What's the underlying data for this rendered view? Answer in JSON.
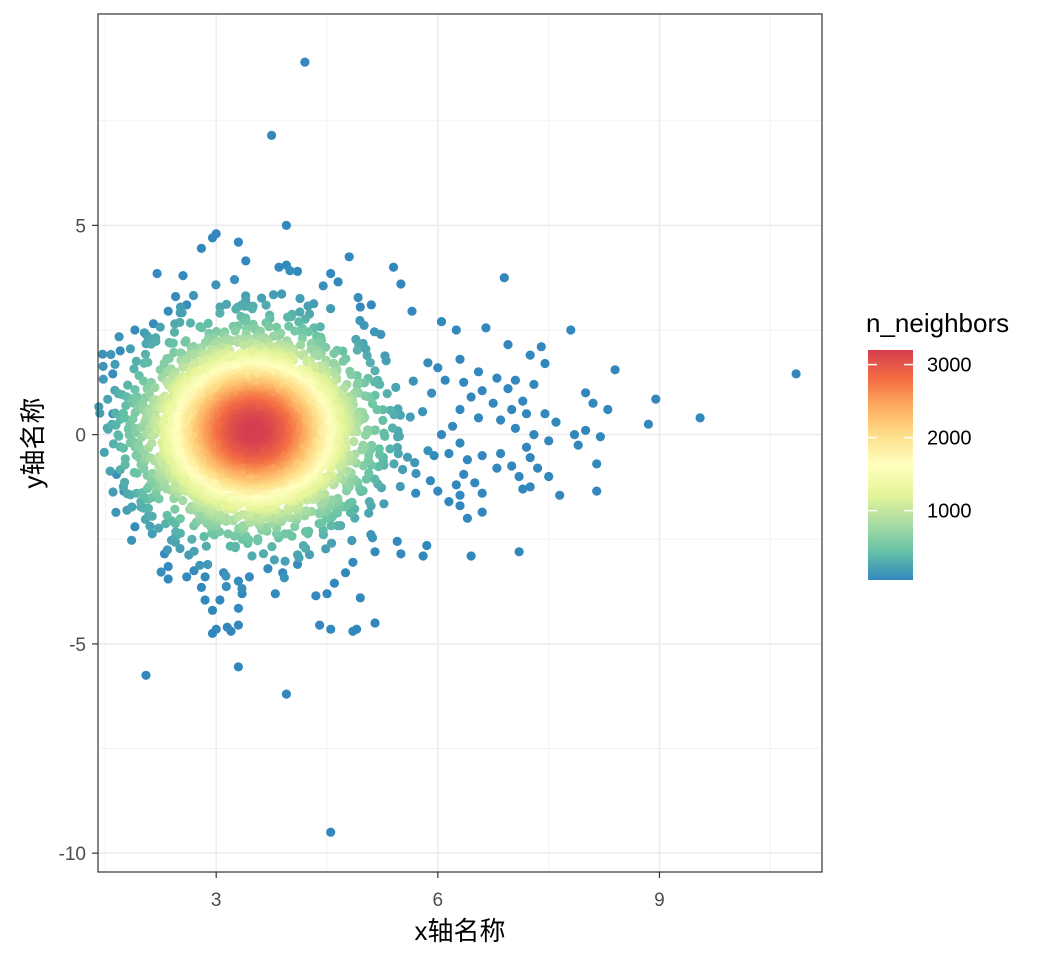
{
  "chart_data": {
    "type": "scatter",
    "xlabel": "x轴名称",
    "ylabel": "y轴名称",
    "xlim": [
      1.4,
      11.2
    ],
    "ylim": [
      -10.45,
      10.05
    ],
    "x_ticks": [
      3,
      6,
      9
    ],
    "x_tick_labels": [
      "3",
      "6",
      "9"
    ],
    "y_ticks": [
      -10,
      -5,
      0,
      5
    ],
    "y_tick_labels": [
      "-10",
      "-5",
      "0",
      "5"
    ],
    "grid": true,
    "color_variable": "n_neighbors",
    "colorbar": {
      "title": "n_neighbors",
      "range": [
        50,
        3200
      ],
      "ticks": [
        1000,
        2000,
        3000
      ],
      "tick_labels": [
        "1000",
        "2000",
        "3000"
      ],
      "palette": [
        "#3288bd",
        "#66c2a5",
        "#abdda4",
        "#e6f598",
        "#ffffbf",
        "#fee08b",
        "#fdae61",
        "#f46d43",
        "#d53e4f"
      ],
      "position": "right"
    },
    "core_cloud": {
      "description": "dense bivariate-normal cluster",
      "center": [
        3.5,
        0.1
      ],
      "sd": [
        0.75,
        1.15
      ],
      "n_points": 3600,
      "max_neighbors": 3200
    },
    "sparse_points": [
      {
        "x": 4.2,
        "y": 8.9
      },
      {
        "x": 3.75,
        "y": 7.15
      },
      {
        "x": 3.95,
        "y": 5.0
      },
      {
        "x": 3.0,
        "y": 4.8
      },
      {
        "x": 2.95,
        "y": 4.7
      },
      {
        "x": 3.3,
        "y": 4.6
      },
      {
        "x": 2.8,
        "y": 4.45
      },
      {
        "x": 3.4,
        "y": 4.15
      },
      {
        "x": 3.85,
        "y": 4.0
      },
      {
        "x": 3.95,
        "y": 4.05
      },
      {
        "x": 4.1,
        "y": 3.9
      },
      {
        "x": 4.55,
        "y": 3.85
      },
      {
        "x": 4.8,
        "y": 4.25
      },
      {
        "x": 5.4,
        "y": 4.0
      },
      {
        "x": 5.5,
        "y": 3.6
      },
      {
        "x": 4.65,
        "y": 3.65
      },
      {
        "x": 2.2,
        "y": 3.85
      },
      {
        "x": 2.55,
        "y": 3.8
      },
      {
        "x": 6.9,
        "y": 3.75
      },
      {
        "x": 2.45,
        "y": 3.3
      },
      {
        "x": 4.95,
        "y": 3.05
      },
      {
        "x": 5.1,
        "y": 3.1
      },
      {
        "x": 5.65,
        "y": 2.95
      },
      {
        "x": 6.05,
        "y": 2.7
      },
      {
        "x": 6.25,
        "y": 2.5
      },
      {
        "x": 6.65,
        "y": 2.55
      },
      {
        "x": 7.8,
        "y": 2.5
      },
      {
        "x": 6.95,
        "y": 2.15
      },
      {
        "x": 7.25,
        "y": 1.9
      },
      {
        "x": 7.4,
        "y": 2.1
      },
      {
        "x": 7.45,
        "y": 1.7
      },
      {
        "x": 8.4,
        "y": 1.55
      },
      {
        "x": 10.85,
        "y": 1.45
      },
      {
        "x": 6.3,
        "y": 1.8
      },
      {
        "x": 6.0,
        "y": 1.6
      },
      {
        "x": 6.55,
        "y": 1.5
      },
      {
        "x": 6.1,
        "y": 1.3
      },
      {
        "x": 6.35,
        "y": 1.25
      },
      {
        "x": 6.8,
        "y": 1.35
      },
      {
        "x": 7.05,
        "y": 1.3
      },
      {
        "x": 6.95,
        "y": 1.1
      },
      {
        "x": 7.3,
        "y": 1.2
      },
      {
        "x": 6.6,
        "y": 1.05
      },
      {
        "x": 8.0,
        "y": 1.0
      },
      {
        "x": 8.1,
        "y": 0.75
      },
      {
        "x": 8.3,
        "y": 0.6
      },
      {
        "x": 8.95,
        "y": 0.85
      },
      {
        "x": 9.55,
        "y": 0.4
      },
      {
        "x": 8.85,
        "y": 0.25
      },
      {
        "x": 7.6,
        "y": 0.3
      },
      {
        "x": 7.45,
        "y": 0.5
      },
      {
        "x": 7.2,
        "y": 0.5
      },
      {
        "x": 7.15,
        "y": 0.8
      },
      {
        "x": 6.75,
        "y": 0.75
      },
      {
        "x": 6.45,
        "y": 0.9
      },
      {
        "x": 6.3,
        "y": 0.6
      },
      {
        "x": 6.55,
        "y": 0.4
      },
      {
        "x": 6.85,
        "y": 0.35
      },
      {
        "x": 7.0,
        "y": 0.6
      },
      {
        "x": 7.05,
        "y": 0.15
      },
      {
        "x": 7.3,
        "y": 0.0
      },
      {
        "x": 7.5,
        "y": -0.15
      },
      {
        "x": 7.85,
        "y": 0.0
      },
      {
        "x": 8.0,
        "y": 0.1
      },
      {
        "x": 8.2,
        "y": -0.05
      },
      {
        "x": 7.9,
        "y": -0.25
      },
      {
        "x": 6.2,
        "y": 0.2
      },
      {
        "x": 6.05,
        "y": 0.0
      },
      {
        "x": 6.3,
        "y": -0.2
      },
      {
        "x": 6.15,
        "y": -0.45
      },
      {
        "x": 5.95,
        "y": -0.5
      },
      {
        "x": 6.4,
        "y": -0.6
      },
      {
        "x": 6.6,
        "y": -0.5
      },
      {
        "x": 6.85,
        "y": -0.45
      },
      {
        "x": 7.2,
        "y": -0.3
      },
      {
        "x": 7.25,
        "y": -0.55
      },
      {
        "x": 7.0,
        "y": -0.75
      },
      {
        "x": 6.8,
        "y": -0.8
      },
      {
        "x": 6.35,
        "y": -0.95
      },
      {
        "x": 6.25,
        "y": -1.2
      },
      {
        "x": 6.5,
        "y": -1.15
      },
      {
        "x": 7.1,
        "y": -1.0
      },
      {
        "x": 7.5,
        "y": -1.0
      },
      {
        "x": 7.35,
        "y": -0.8
      },
      {
        "x": 8.15,
        "y": -0.7
      },
      {
        "x": 7.25,
        "y": -1.25
      },
      {
        "x": 7.65,
        "y": -1.45
      },
      {
        "x": 8.15,
        "y": -1.35
      },
      {
        "x": 7.15,
        "y": -1.3
      },
      {
        "x": 6.6,
        "y": -1.4
      },
      {
        "x": 6.15,
        "y": -1.6
      },
      {
        "x": 6.0,
        "y": -1.35
      },
      {
        "x": 5.7,
        "y": -1.4
      },
      {
        "x": 5.9,
        "y": -1.1
      },
      {
        "x": 6.3,
        "y": -1.7
      },
      {
        "x": 6.6,
        "y": -1.85
      },
      {
        "x": 6.4,
        "y": -2.0
      },
      {
        "x": 7.1,
        "y": -2.8
      },
      {
        "x": 6.45,
        "y": -2.9
      },
      {
        "x": 5.85,
        "y": -2.65
      },
      {
        "x": 5.8,
        "y": -2.9
      },
      {
        "x": 5.5,
        "y": -2.85
      },
      {
        "x": 5.45,
        "y": -2.55
      },
      {
        "x": 5.15,
        "y": -2.8
      },
      {
        "x": 4.85,
        "y": -3.05
      },
      {
        "x": 4.75,
        "y": -3.3
      },
      {
        "x": 4.6,
        "y": -3.55
      },
      {
        "x": 4.5,
        "y": -3.8
      },
      {
        "x": 4.35,
        "y": -3.85
      },
      {
        "x": 4.95,
        "y": -3.9
      },
      {
        "x": 4.1,
        "y": -3.1
      },
      {
        "x": 3.9,
        "y": -3.3
      },
      {
        "x": 3.7,
        "y": -3.2
      },
      {
        "x": 3.45,
        "y": -3.4
      },
      {
        "x": 3.3,
        "y": -3.5
      },
      {
        "x": 3.1,
        "y": -3.3
      },
      {
        "x": 2.85,
        "y": -3.4
      },
      {
        "x": 2.6,
        "y": -3.4
      },
      {
        "x": 2.35,
        "y": -3.45
      },
      {
        "x": 2.35,
        "y": -3.15
      },
      {
        "x": 2.3,
        "y": -2.85
      },
      {
        "x": 2.7,
        "y": -3.25
      },
      {
        "x": 2.8,
        "y": -3.65
      },
      {
        "x": 2.85,
        "y": -3.95
      },
      {
        "x": 2.95,
        "y": -4.2
      },
      {
        "x": 3.05,
        "y": -3.95
      },
      {
        "x": 3.35,
        "y": -3.8
      },
      {
        "x": 3.3,
        "y": -4.15
      },
      {
        "x": 3.3,
        "y": -4.55
      },
      {
        "x": 3.15,
        "y": -4.6
      },
      {
        "x": 3.2,
        "y": -4.7
      },
      {
        "x": 3.0,
        "y": -4.65
      },
      {
        "x": 2.95,
        "y": -4.75
      },
      {
        "x": 3.8,
        "y": -3.8
      },
      {
        "x": 4.4,
        "y": -4.55
      },
      {
        "x": 4.55,
        "y": -4.65
      },
      {
        "x": 4.85,
        "y": -4.7
      },
      {
        "x": 4.9,
        "y": -4.65
      },
      {
        "x": 5.15,
        "y": -4.5
      },
      {
        "x": 3.3,
        "y": -5.55
      },
      {
        "x": 2.05,
        "y": -5.75
      },
      {
        "x": 3.95,
        "y": -6.2
      },
      {
        "x": 4.55,
        "y": -9.5
      },
      {
        "x": 1.9,
        "y": -2.2
      },
      {
        "x": 1.75,
        "y": -1.35
      },
      {
        "x": 1.65,
        "y": -0.95
      },
      {
        "x": 1.6,
        "y": 0.5
      },
      {
        "x": 1.6,
        "y": 1.45
      },
      {
        "x": 1.7,
        "y": 2.0
      },
      {
        "x": 1.9,
        "y": 2.5
      },
      {
        "x": 2.15,
        "y": 2.65
      },
      {
        "x": 2.35,
        "y": 2.95
      },
      {
        "x": 2.6,
        "y": 3.1
      }
    ]
  }
}
